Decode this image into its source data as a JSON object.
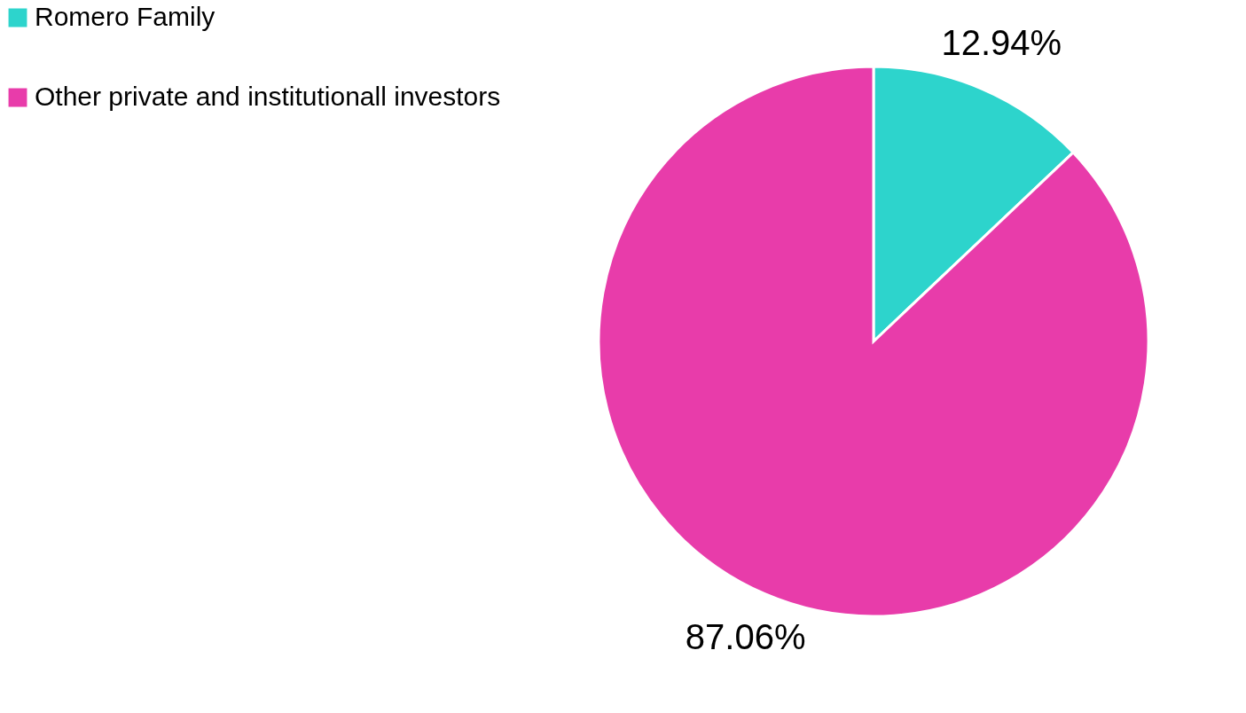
{
  "chart_data": {
    "type": "pie",
    "categories": [
      "Romero Family",
      "Other private and institutionall investors"
    ],
    "values": [
      12.94,
      87.06
    ],
    "colors": [
      "#2dd4cc",
      "#e83caa"
    ],
    "value_labels": [
      "12.94%",
      "87.06%"
    ],
    "legend": "left"
  }
}
